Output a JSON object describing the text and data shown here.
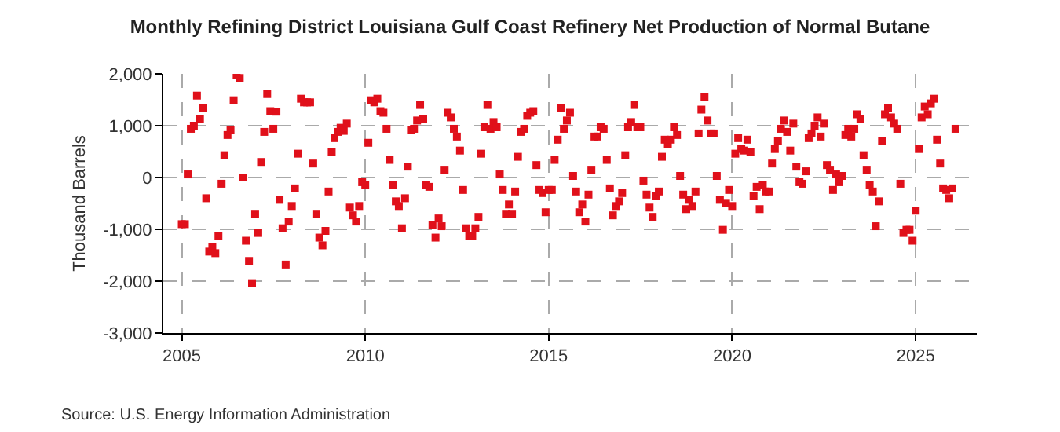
{
  "chart_data": {
    "type": "scatter",
    "title": "Monthly Refining District Louisiana Gulf Coast Refinery Net Production of Normal Butane",
    "ylabel": "Thousand Barrels",
    "annotations": [
      "Source: U.S. Energy Information Administration"
    ],
    "x": [
      "2005-01",
      "2005-02",
      "2005-03",
      "2005-04",
      "2005-05",
      "2005-06",
      "2005-07",
      "2005-08",
      "2005-09",
      "2005-10",
      "2005-11",
      "2005-12",
      "2006-01",
      "2006-02",
      "2006-03",
      "2006-04",
      "2006-05",
      "2006-06",
      "2006-07",
      "2006-08",
      "2006-09",
      "2006-10",
      "2006-11",
      "2006-12",
      "2007-01",
      "2007-02",
      "2007-03",
      "2007-04",
      "2007-05",
      "2007-06",
      "2007-07",
      "2007-08",
      "2007-09",
      "2007-10",
      "2007-11",
      "2007-12",
      "2008-01",
      "2008-02",
      "2008-03",
      "2008-04",
      "2008-05",
      "2008-06",
      "2008-07",
      "2008-08",
      "2008-09",
      "2008-10",
      "2008-11",
      "2008-12",
      "2009-01",
      "2009-02",
      "2009-03",
      "2009-04",
      "2009-05",
      "2009-06",
      "2009-07",
      "2009-08",
      "2009-09",
      "2009-10",
      "2009-11",
      "2009-12",
      "2010-01",
      "2010-02",
      "2010-03",
      "2010-04",
      "2010-05",
      "2010-06",
      "2010-07",
      "2010-08",
      "2010-09",
      "2010-10",
      "2010-11",
      "2010-12",
      "2011-01",
      "2011-02",
      "2011-03",
      "2011-04",
      "2011-05",
      "2011-06",
      "2011-07",
      "2011-08",
      "2011-09",
      "2011-10",
      "2011-11",
      "2011-12",
      "2012-01",
      "2012-02",
      "2012-03",
      "2012-04",
      "2012-05",
      "2012-06",
      "2012-07",
      "2012-08",
      "2012-09",
      "2012-10",
      "2012-11",
      "2012-12",
      "2013-01",
      "2013-02",
      "2013-03",
      "2013-04",
      "2013-05",
      "2013-06",
      "2013-07",
      "2013-08",
      "2013-09",
      "2013-10",
      "2013-11",
      "2013-12",
      "2014-01",
      "2014-02",
      "2014-03",
      "2014-04",
      "2014-05",
      "2014-06",
      "2014-07",
      "2014-08",
      "2014-09",
      "2014-10",
      "2014-11",
      "2014-12",
      "2015-01",
      "2015-02",
      "2015-03",
      "2015-04",
      "2015-05",
      "2015-06",
      "2015-07",
      "2015-08",
      "2015-09",
      "2015-10",
      "2015-11",
      "2015-12",
      "2016-01",
      "2016-02",
      "2016-03",
      "2016-04",
      "2016-05",
      "2016-06",
      "2016-07",
      "2016-08",
      "2016-09",
      "2016-10",
      "2016-11",
      "2016-12",
      "2017-01",
      "2017-02",
      "2017-03",
      "2017-04",
      "2017-05",
      "2017-06",
      "2017-07",
      "2017-08",
      "2017-09",
      "2017-10",
      "2017-11",
      "2017-12",
      "2018-01",
      "2018-02",
      "2018-03",
      "2018-04",
      "2018-05",
      "2018-06",
      "2018-07",
      "2018-08",
      "2018-09",
      "2018-10",
      "2018-11",
      "2018-12",
      "2019-01",
      "2019-02",
      "2019-03",
      "2019-04",
      "2019-05",
      "2019-06",
      "2019-07",
      "2019-08",
      "2019-09",
      "2019-10",
      "2019-11",
      "2019-12",
      "2020-01",
      "2020-02",
      "2020-03",
      "2020-04",
      "2020-05",
      "2020-06",
      "2020-07",
      "2020-08",
      "2020-09",
      "2020-10",
      "2020-11",
      "2020-12",
      "2021-01",
      "2021-02",
      "2021-03",
      "2021-04",
      "2021-05",
      "2021-06",
      "2021-07",
      "2021-08",
      "2021-09",
      "2021-10",
      "2021-11",
      "2021-12",
      "2022-01",
      "2022-02",
      "2022-03",
      "2022-04",
      "2022-05",
      "2022-06",
      "2022-07",
      "2022-08",
      "2022-09",
      "2022-10",
      "2022-11",
      "2022-12",
      "2023-01",
      "2023-02",
      "2023-03",
      "2023-04",
      "2023-05",
      "2023-06",
      "2023-07",
      "2023-08",
      "2023-09",
      "2023-10",
      "2023-11",
      "2023-12",
      "2024-01",
      "2024-02",
      "2024-03",
      "2024-04",
      "2024-05",
      "2024-06",
      "2024-07",
      "2024-08",
      "2024-09",
      "2024-10",
      "2024-11",
      "2024-12",
      "2025-01",
      "2025-02",
      "2025-03",
      "2025-04",
      "2025-05",
      "2025-06",
      "2025-07",
      "2025-08",
      "2025-09",
      "2025-10",
      "2025-11",
      "2025-12",
      "2026-01",
      "2026-02"
    ],
    "series": [
      {
        "color": "#e0101a",
        "values": [
          -900,
          -900,
          60,
          940,
          1000,
          1580,
          1130,
          1340,
          -400,
          -1430,
          -1340,
          -1460,
          -1130,
          -120,
          430,
          820,
          910,
          1490,
          1970,
          1920,
          0,
          -1220,
          -1610,
          -2040,
          -700,
          -1070,
          300,
          880,
          1610,
          1280,
          940,
          1270,
          -430,
          -980,
          -1680,
          -850,
          -550,
          -210,
          460,
          1520,
          1450,
          1450,
          1450,
          270,
          -700,
          -1160,
          -1310,
          -1030,
          -270,
          490,
          760,
          880,
          960,
          900,
          1040,
          -580,
          -730,
          -850,
          -550,
          -90,
          -150,
          670,
          1490,
          1450,
          1520,
          1280,
          1250,
          940,
          340,
          -150,
          -460,
          -550,
          -980,
          -400,
          210,
          910,
          940,
          1100,
          1400,
          1130,
          -150,
          -180,
          -910,
          -1160,
          -790,
          -940,
          150,
          1250,
          1160,
          940,
          790,
          520,
          -240,
          -980,
          -1130,
          -1130,
          -980,
          -760,
          460,
          970,
          1400,
          940,
          1070,
          970,
          60,
          -240,
          -700,
          -520,
          -700,
          -270,
          400,
          880,
          940,
          1190,
          1250,
          1280,
          240,
          -240,
          -300,
          -670,
          -240,
          -240,
          340,
          730,
          1340,
          940,
          1100,
          1250,
          30,
          -270,
          -670,
          -520,
          -850,
          -330,
          150,
          790,
          790,
          970,
          940,
          340,
          -210,
          -730,
          -550,
          -460,
          -300,
          430,
          970,
          1070,
          1400,
          970,
          970,
          -60,
          -330,
          -580,
          -760,
          -360,
          -270,
          400,
          730,
          640,
          730,
          970,
          820,
          30,
          -330,
          -610,
          -430,
          -550,
          -270,
          850,
          1310,
          1550,
          1100,
          850,
          850,
          30,
          -430,
          -1010,
          -490,
          -240,
          -550,
          460,
          760,
          550,
          520,
          730,
          490,
          -360,
          -180,
          -610,
          -150,
          -270,
          -270,
          270,
          550,
          700,
          940,
          1100,
          880,
          520,
          1040,
          210,
          -90,
          -120,
          120,
          760,
          850,
          1000,
          1160,
          790,
          1040,
          240,
          150,
          -240,
          60,
          -90,
          30,
          820,
          940,
          790,
          940,
          1220,
          1130,
          430,
          150,
          -150,
          -270,
          -940,
          -460,
          700,
          1220,
          1340,
          1160,
          1040,
          940,
          -120,
          -1070,
          -1010,
          -1010,
          -1220,
          -640,
          550,
          1160,
          1370,
          1220,
          1430,
          1520,
          730,
          270,
          -210,
          -240,
          -400,
          -210,
          940
        ]
      }
    ],
    "xlim": [
      "2004-07",
      "2026-09"
    ],
    "xticks": [
      {
        "value": "2005",
        "label": "2005"
      },
      {
        "value": "2010",
        "label": "2010"
      },
      {
        "value": "2015",
        "label": "2015"
      },
      {
        "value": "2020",
        "label": "2020"
      },
      {
        "value": "2025",
        "label": "2025"
      }
    ],
    "ylim": [
      -3000,
      2000
    ],
    "yticks": [
      {
        "value": -3000,
        "label": "-3,000"
      },
      {
        "value": -2000,
        "label": "-2,000"
      },
      {
        "value": -1000,
        "label": "-1,000"
      },
      {
        "value": 0,
        "label": "0"
      },
      {
        "value": 1000,
        "label": "1,000"
      },
      {
        "value": 2000,
        "label": "2,000"
      }
    ],
    "grid": true,
    "marker": "square"
  }
}
